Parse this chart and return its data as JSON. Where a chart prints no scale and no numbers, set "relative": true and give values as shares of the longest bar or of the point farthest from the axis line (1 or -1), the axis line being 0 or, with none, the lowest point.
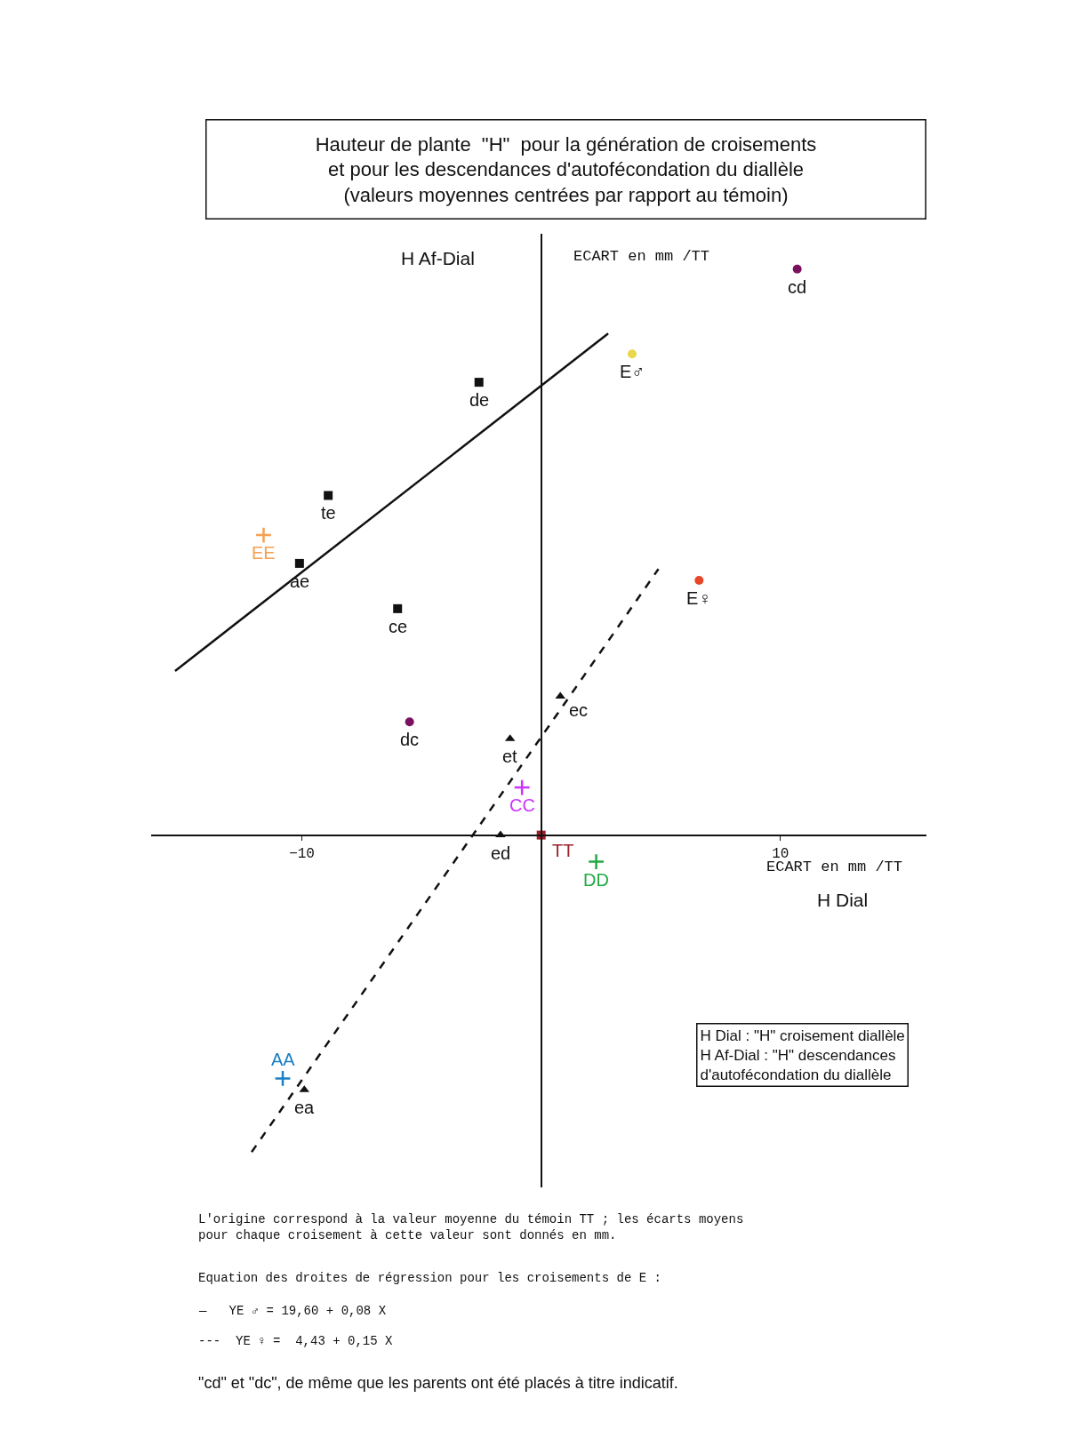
{
  "chart_data": {
    "type": "scatter",
    "title": "Hauteur de plante  \"H\"  pour la génération de croisements\net pour les descendances d'autofécondation du diallèle\n(valeurs moyennes centrées par rapport au témoin)",
    "xlabel": "H Dial",
    "ylabel": "H Af-Dial",
    "relative": true,
    "xlim": [
      -16.3,
      16.1
    ],
    "xticks": [
      -10,
      10
    ],
    "tick_labels": "x",
    "series": [
      {
        "marker": "square",
        "x": [
          -2.6,
          -8.9,
          -10.1,
          -6.0,
          0.0
        ],
        "values": [
          0.8,
          0.6,
          0.48,
          0.4,
          0.0
        ],
        "colors": [
          "#111111",
          "#111111",
          "#111111",
          "#111111",
          "#a01d2a"
        ]
      },
      {
        "marker": "triangle",
        "x": [
          0.8,
          -1.3,
          -1.7,
          -9.9
        ],
        "values": [
          0.245,
          0.17,
          0.0,
          -0.45
        ],
        "colors": [
          "#111111",
          "#111111",
          "#111111",
          "#111111"
        ]
      },
      {
        "marker": "circle",
        "x": [
          10.7,
          -5.5,
          6.6,
          3.8
        ],
        "values": [
          1.0,
          0.2,
          0.45,
          0.85
        ],
        "colors": [
          "#7a1060",
          "#7a1060",
          "#e8462a",
          "#e8d84a"
        ]
      },
      {
        "marker": "cross",
        "x": [
          -11.6,
          -0.8,
          2.3,
          -10.8
        ],
        "values": [
          0.53,
          0.084,
          -0.047,
          -0.43
        ],
        "colors": [
          "#f5a050",
          "#cc33ff",
          "#22aa44",
          "#1a7fc4"
        ]
      },
      {
        "type": "line",
        "marker": "none",
        "line_style": "solid",
        "color": "#111111",
        "x": [
          -15.3,
          2.8
        ],
        "values": [
          0.29,
          0.886
        ]
      },
      {
        "type": "line",
        "marker": "none",
        "line_style": "dashed",
        "color": "#111111",
        "x": [
          -12.1,
          4.9
        ],
        "values": [
          -0.56,
          0.47
        ]
      }
    ],
    "annotations": [
      {
        "text": "de",
        "x": -2.6,
        "y": 0.8
      },
      {
        "text": "te",
        "x": -8.9,
        "y": 0.6
      },
      {
        "text": "ae",
        "x": -10.1,
        "y": 0.48
      },
      {
        "text": "ce",
        "x": -6.0,
        "y": 0.4
      },
      {
        "text": "TT",
        "x": 0.0,
        "y": 0.0
      },
      {
        "text": "ec",
        "x": 0.8,
        "y": 0.245
      },
      {
        "text": "et",
        "x": -1.3,
        "y": 0.17
      },
      {
        "text": "ed",
        "x": -1.7,
        "y": 0.0
      },
      {
        "text": "ea",
        "x": -9.9,
        "y": -0.45
      },
      {
        "text": "cd",
        "x": 10.7,
        "y": 1.0
      },
      {
        "text": "dc",
        "x": -5.5,
        "y": 0.2
      },
      {
        "text": "E♀",
        "x": 6.6,
        "y": 0.45
      },
      {
        "text": "E♂",
        "x": 3.8,
        "y": 0.85
      },
      {
        "text": "EE",
        "x": -11.6,
        "y": 0.53
      },
      {
        "text": "CC",
        "x": -0.8,
        "y": 0.084
      },
      {
        "text": "DD",
        "x": 2.3,
        "y": -0.047
      },
      {
        "text": "AA",
        "x": -10.8,
        "y": -0.43
      },
      "ECART en mm /TT",
      "ECART en mm /TT",
      "H Dial : \"H\" croisement diallèle\nH Af-Dial : \"H\" descendances\nd'autofécondation du diallèle",
      "L'origine correspond à la valeur moyenne du témoin TT ; les écarts moyens\npour chaque croisement à cette valeur sont donnés en mm.",
      "Equation des droites de régression pour les croisements de E :",
      "—   YE ♂ = 19,60 + 0,08 X",
      "---  YE ♀ =  4,43 + 0,15 X",
      "\"cd\" et \"dc\", de même que les parents ont été placés à titre indicatif."
    ]
  }
}
